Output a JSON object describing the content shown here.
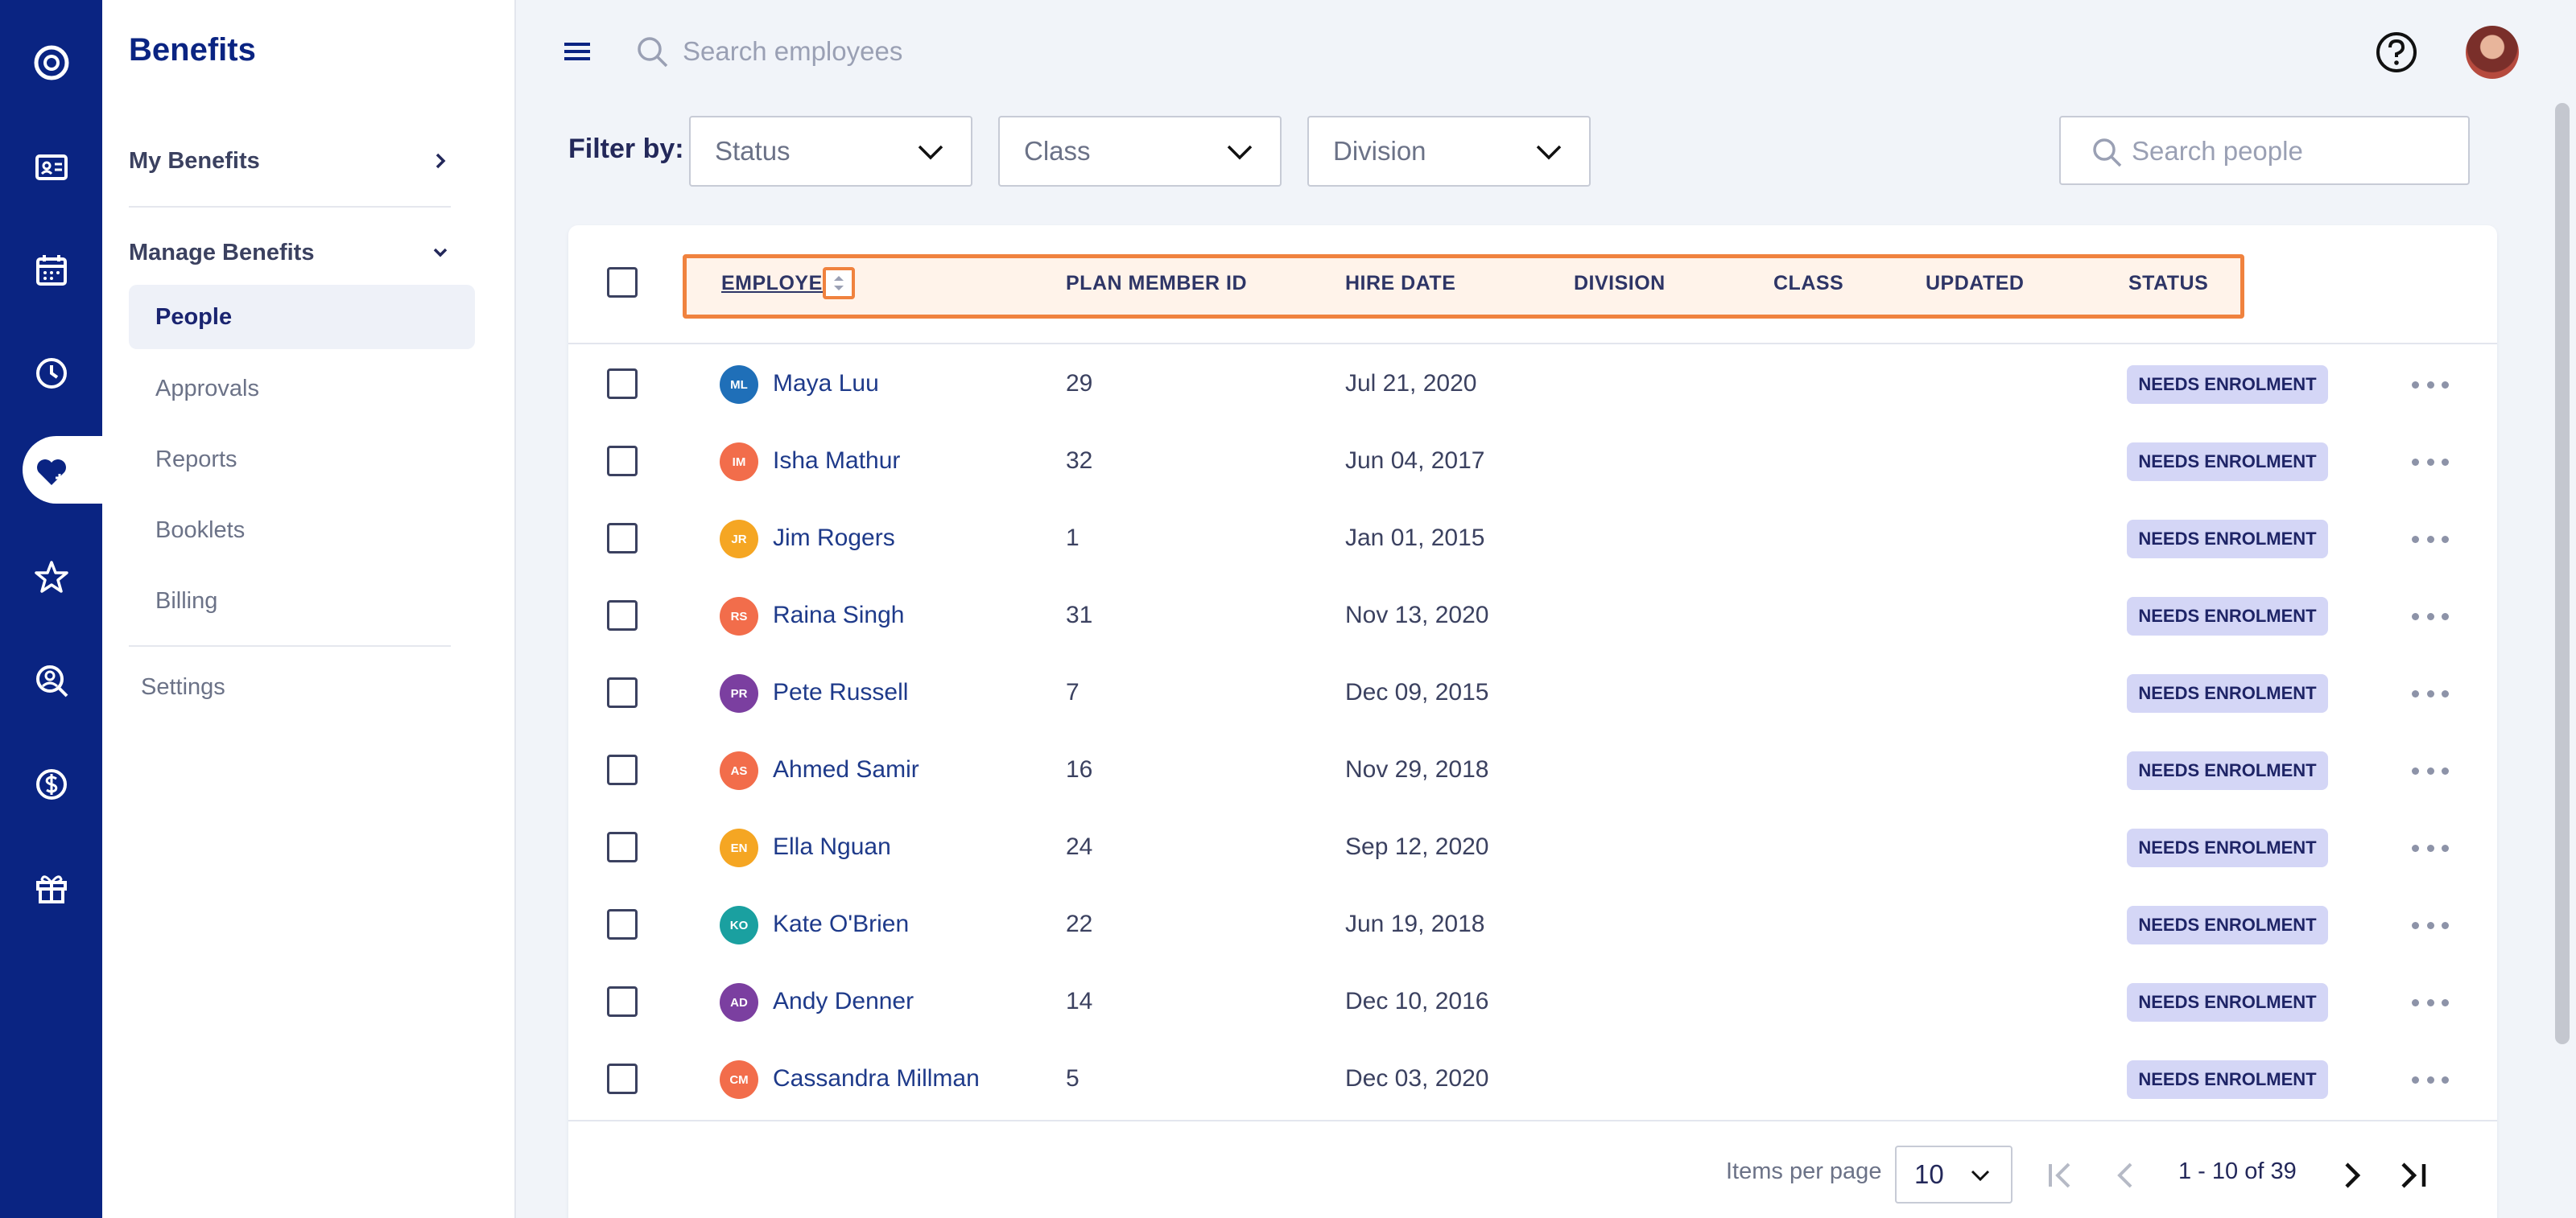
{
  "app": {
    "title": "Benefits"
  },
  "colors": {
    "rail": "#0a2482",
    "accent": "#f0823e",
    "badge": "#d4d6f6",
    "link": "#1e3a8a"
  },
  "rail_icons": [
    "logo-icon",
    "id-card-icon",
    "calendar-icon",
    "clock-icon",
    "heart-icon",
    "star-icon",
    "person-search-icon",
    "dollar-icon",
    "gift-icon"
  ],
  "sidebar": {
    "my_benefits": "My Benefits",
    "manage_benefits": "Manage Benefits",
    "items": [
      {
        "label": "People",
        "active": true
      },
      {
        "label": "Approvals",
        "active": false
      },
      {
        "label": "Reports",
        "active": false
      },
      {
        "label": "Booklets",
        "active": false
      },
      {
        "label": "Billing",
        "active": false
      }
    ],
    "settings": "Settings"
  },
  "topbar": {
    "search_placeholder": "Search employees"
  },
  "filters": {
    "label": "Filter by:",
    "status": "Status",
    "class": "Class",
    "division": "Division",
    "search_placeholder": "Search people"
  },
  "table": {
    "columns": [
      "EMPLOYEE",
      "PLAN MEMBER ID",
      "HIRE DATE",
      "DIVISION",
      "CLASS",
      "UPDATED",
      "STATUS"
    ],
    "rows": [
      {
        "initials": "ML",
        "name": "Maya Luu",
        "id": "29",
        "hire": "Jul 21, 2020",
        "status": "NEEDS ENROLMENT",
        "color": "#1f6fb8"
      },
      {
        "initials": "IM",
        "name": "Isha Mathur",
        "id": "32",
        "hire": "Jun 04, 2017",
        "status": "NEEDS ENROLMENT",
        "color": "#f26d4b"
      },
      {
        "initials": "JR",
        "name": "Jim Rogers",
        "id": "1",
        "hire": "Jan 01, 2015",
        "status": "NEEDS ENROLMENT",
        "color": "#f5a623"
      },
      {
        "initials": "RS",
        "name": "Raina Singh",
        "id": "31",
        "hire": "Nov 13, 2020",
        "status": "NEEDS ENROLMENT",
        "color": "#f26d4b"
      },
      {
        "initials": "PR",
        "name": "Pete Russell",
        "id": "7",
        "hire": "Dec 09, 2015",
        "status": "NEEDS ENROLMENT",
        "color": "#7b3fa0"
      },
      {
        "initials": "AS",
        "name": "Ahmed Samir",
        "id": "16",
        "hire": "Nov 29, 2018",
        "status": "NEEDS ENROLMENT",
        "color": "#f26d4b"
      },
      {
        "initials": "EN",
        "name": "Ella Nguan",
        "id": "24",
        "hire": "Sep 12, 2020",
        "status": "NEEDS ENROLMENT",
        "color": "#f5a623"
      },
      {
        "initials": "KO",
        "name": "Kate O'Brien",
        "id": "22",
        "hire": "Jun 19, 2018",
        "status": "NEEDS ENROLMENT",
        "color": "#1aa0a0"
      },
      {
        "initials": "AD",
        "name": "Andy Denner",
        "id": "14",
        "hire": "Dec 10, 2016",
        "status": "NEEDS ENROLMENT",
        "color": "#7b3fa0"
      },
      {
        "initials": "CM",
        "name": "Cassandra Millman",
        "id": "5",
        "hire": "Dec 03, 2020",
        "status": "NEEDS ENROLMENT",
        "color": "#f26d4b"
      }
    ]
  },
  "pagination": {
    "label": "Items per page",
    "per_page": "10",
    "range": "1 - 10 of 39"
  }
}
